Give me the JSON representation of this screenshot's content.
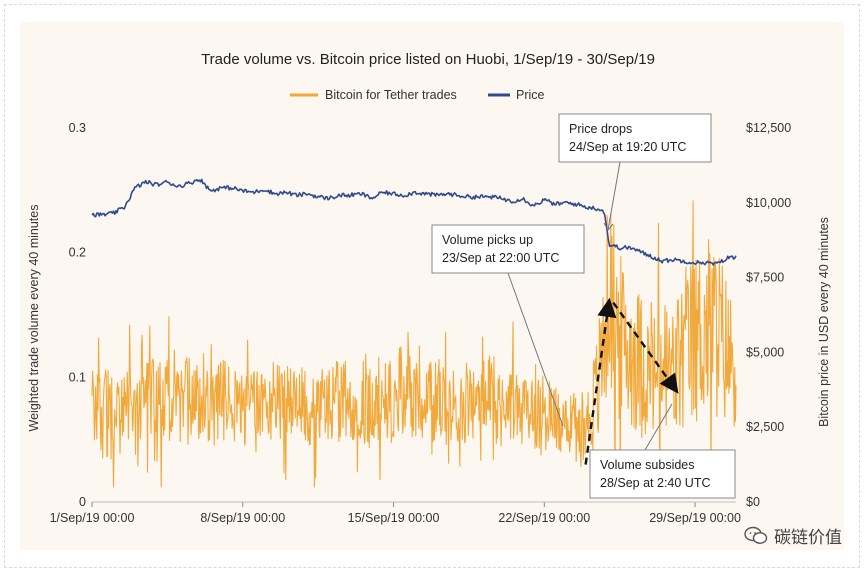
{
  "watermark": {
    "text": "碳链价值",
    "icon": "wechat-icon"
  },
  "chart_data": {
    "type": "line",
    "title": "Trade volume vs. Bitcoin price listed on Huobi, 1/Sep/19 - 30/Sep/19",
    "x_tick_labels": [
      "1/Sep/19 00:00",
      "8/Sep/19 00:00",
      "15/Sep/19 00:00",
      "22/Sep/19 00:00",
      "29/Sep/19 00:00"
    ],
    "x_tick_days": [
      0,
      7,
      14,
      21,
      28
    ],
    "xlim_days": [
      0,
      29.9
    ],
    "left_axis": {
      "label": "Weighted trade volume every 40 minutes",
      "ylim": [
        0,
        0.3
      ],
      "ticks": [
        0,
        0.1,
        0.2,
        0.3
      ],
      "tick_labels": [
        "0",
        "0.1",
        "0.2",
        "0.3"
      ]
    },
    "right_axis": {
      "label": "Bitcoin price in USD every 40 minutes",
      "ylim": [
        0,
        12500
      ],
      "ticks": [
        0,
        2500,
        5000,
        7500,
        10000,
        12500
      ],
      "tick_labels": [
        "$0",
        "$2,500",
        "$5,000",
        "$7,500",
        "$10,000",
        "$12,500"
      ]
    },
    "series": [
      {
        "name": "Bitcoin for Tether trades",
        "axis": "left",
        "color": "#f2a93b",
        "x_days": [
          0,
          0.5,
          1,
          1.5,
          2,
          2.5,
          3,
          3.5,
          4,
          4.5,
          5,
          5.5,
          6,
          6.5,
          7,
          7.5,
          8,
          8.5,
          9,
          9.5,
          10,
          10.5,
          11,
          11.5,
          12,
          12.5,
          13,
          13.5,
          14,
          14.5,
          15,
          15.5,
          16,
          16.5,
          17,
          17.5,
          18,
          18.5,
          19,
          19.5,
          20,
          20.5,
          21,
          21.5,
          22,
          22.5,
          22.917,
          23.5,
          24,
          24.5,
          25,
          25.5,
          26,
          26.5,
          27,
          27.5,
          28,
          28.5,
          29,
          29.5,
          29.9
        ],
        "values": [
          0.08,
          0.075,
          0.07,
          0.08,
          0.075,
          0.085,
          0.09,
          0.08,
          0.075,
          0.085,
          0.08,
          0.075,
          0.08,
          0.08,
          0.075,
          0.07,
          0.08,
          0.085,
          0.08,
          0.075,
          0.08,
          0.078,
          0.08,
          0.082,
          0.08,
          0.085,
          0.075,
          0.08,
          0.082,
          0.09,
          0.085,
          0.08,
          0.08,
          0.075,
          0.078,
          0.08,
          0.082,
          0.085,
          0.078,
          0.08,
          0.075,
          0.078,
          0.07,
          0.065,
          0.07,
          0.06,
          0.06,
          0.09,
          0.17,
          0.13,
          0.12,
          0.11,
          0.1,
          0.11,
          0.1,
          0.12,
          0.13,
          0.14,
          0.14,
          0.12,
          0.11
        ],
        "noise_amplitude": [
          0.03,
          0.04,
          0.035,
          0.03,
          0.035,
          0.03,
          0.04,
          0.035,
          0.03,
          0.035,
          0.03,
          0.03,
          0.035,
          0.03,
          0.03,
          0.035,
          0.03,
          0.035,
          0.03,
          0.03,
          0.035,
          0.03,
          0.03,
          0.035,
          0.03,
          0.04,
          0.035,
          0.03,
          0.035,
          0.04,
          0.035,
          0.03,
          0.035,
          0.03,
          0.03,
          0.035,
          0.03,
          0.035,
          0.035,
          0.03,
          0.03,
          0.035,
          0.035,
          0.03,
          0.03,
          0.03,
          0.025,
          0.05,
          0.08,
          0.07,
          0.06,
          0.06,
          0.05,
          0.06,
          0.06,
          0.07,
          0.07,
          0.075,
          0.075,
          0.06,
          0.05
        ]
      },
      {
        "name": "Price",
        "axis": "right",
        "color": "#2f4b8c",
        "x_days": [
          0,
          0.5,
          1,
          1.5,
          2,
          2.5,
          3,
          3.5,
          4,
          4.5,
          5,
          5.5,
          6,
          6.5,
          7,
          7.5,
          8,
          8.5,
          9,
          9.5,
          10,
          10.5,
          11,
          11.5,
          12,
          12.5,
          13,
          13.5,
          14,
          14.5,
          15,
          15.5,
          16,
          16.5,
          17,
          17.5,
          18,
          18.5,
          19,
          19.5,
          20,
          20.5,
          21,
          21.5,
          22,
          22.5,
          23,
          23.5,
          23.8,
          24.0,
          24.5,
          25,
          25.5,
          26,
          26.5,
          27,
          27.5,
          28,
          28.5,
          29,
          29.5,
          29.9
        ],
        "values": [
          9600,
          9600,
          9650,
          9850,
          10500,
          10700,
          10600,
          10700,
          10550,
          10650,
          10800,
          10400,
          10500,
          10500,
          10400,
          10350,
          10450,
          10300,
          10350,
          10250,
          10300,
          10200,
          10150,
          10250,
          10250,
          10300,
          10150,
          10350,
          10300,
          10250,
          10350,
          10300,
          10250,
          10300,
          10250,
          10200,
          10200,
          10200,
          10150,
          10050,
          10150,
          9900,
          10100,
          9950,
          10000,
          9950,
          9850,
          9800,
          9700,
          8600,
          8500,
          8500,
          8350,
          8200,
          8050,
          8100,
          8050,
          8000,
          8000,
          7950,
          8150,
          8200
        ]
      }
    ],
    "legend": {
      "placement": "top-center",
      "entries": [
        "Bitcoin for Tether trades",
        "Price"
      ]
    },
    "annotations": [
      {
        "lines": [
          "Price drops",
          "24/Sep at 19:20 UTC"
        ],
        "target_day": 23.8
      },
      {
        "lines": [
          "Volume picks up",
          "23/Sep at 22:00 UTC"
        ],
        "target_day": 22.917
      },
      {
        "lines": [
          "Volume subsides",
          "28/Sep at 2:40 UTC"
        ],
        "target_day": 27.1
      }
    ],
    "trend_arrows": [
      {
        "from": [
          22.917,
          0.03
        ],
        "to": [
          24.0,
          0.16
        ],
        "style": "dashed"
      },
      {
        "from": [
          24.2,
          0.16
        ],
        "to": [
          27.1,
          0.09
        ],
        "style": "dashed"
      }
    ]
  }
}
